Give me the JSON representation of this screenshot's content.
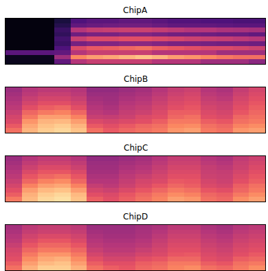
{
  "chart_data": [
    {
      "type": "heatmap",
      "title": "ChipA",
      "zlim": [
        0,
        1
      ],
      "tick_labels": false,
      "cells": [
        [
          0.05,
          0.05,
          0.05,
          0.3,
          0.5,
          0.55,
          0.55,
          0.55,
          0.55,
          0.5,
          0.5,
          0.5,
          0.45,
          0.45,
          0.45,
          0.4
        ],
        [
          0.05,
          0.05,
          0.05,
          0.45,
          0.75,
          0.8,
          0.82,
          0.85,
          0.88,
          0.85,
          0.8,
          0.78,
          0.75,
          0.72,
          0.7,
          0.7
        ],
        [
          0.28,
          0.28,
          0.28,
          0.3,
          0.5,
          0.55,
          0.55,
          0.55,
          0.55,
          0.5,
          0.5,
          0.5,
          0.5,
          0.45,
          0.45,
          0.45
        ],
        [
          0.02,
          0.02,
          0.02,
          0.25,
          0.6,
          0.65,
          0.66,
          0.68,
          0.7,
          0.66,
          0.64,
          0.62,
          0.6,
          0.6,
          0.58,
          0.56
        ],
        [
          0.02,
          0.02,
          0.02,
          0.2,
          0.35,
          0.38,
          0.38,
          0.4,
          0.4,
          0.38,
          0.36,
          0.36,
          0.35,
          0.34,
          0.34,
          0.33
        ],
        [
          0.02,
          0.02,
          0.02,
          0.22,
          0.55,
          0.6,
          0.6,
          0.62,
          0.62,
          0.6,
          0.58,
          0.56,
          0.55,
          0.54,
          0.52,
          0.5
        ],
        [
          0.02,
          0.02,
          0.02,
          0.18,
          0.33,
          0.36,
          0.36,
          0.38,
          0.38,
          0.36,
          0.34,
          0.34,
          0.33,
          0.32,
          0.32,
          0.3
        ],
        [
          0.02,
          0.02,
          0.02,
          0.2,
          0.5,
          0.54,
          0.55,
          0.56,
          0.56,
          0.54,
          0.52,
          0.5,
          0.5,
          0.48,
          0.47,
          0.46
        ],
        [
          0.02,
          0.02,
          0.02,
          0.15,
          0.3,
          0.32,
          0.33,
          0.34,
          0.34,
          0.32,
          0.3,
          0.3,
          0.3,
          0.29,
          0.28,
          0.28
        ],
        [
          0.02,
          0.02,
          0.02,
          0.12,
          0.25,
          0.28,
          0.28,
          0.3,
          0.3,
          0.28,
          0.26,
          0.26,
          0.25,
          0.25,
          0.24,
          0.24
        ]
      ]
    },
    {
      "type": "heatmap",
      "title": "ChipB",
      "zlim": [
        0,
        1
      ],
      "tick_labels": false,
      "cells": [
        [
          0.7,
          0.85,
          0.9,
          0.92,
          0.88,
          0.7,
          0.65,
          0.68,
          0.7,
          0.72,
          0.78,
          0.8,
          0.72,
          0.7,
          0.78,
          0.8
        ],
        [
          0.65,
          0.82,
          0.88,
          0.9,
          0.85,
          0.65,
          0.62,
          0.65,
          0.68,
          0.7,
          0.75,
          0.76,
          0.7,
          0.68,
          0.74,
          0.76
        ],
        [
          0.6,
          0.78,
          0.85,
          0.86,
          0.8,
          0.6,
          0.58,
          0.6,
          0.62,
          0.66,
          0.72,
          0.72,
          0.66,
          0.64,
          0.7,
          0.72
        ],
        [
          0.58,
          0.72,
          0.8,
          0.8,
          0.74,
          0.55,
          0.54,
          0.56,
          0.6,
          0.62,
          0.68,
          0.7,
          0.62,
          0.6,
          0.68,
          0.7
        ],
        [
          0.55,
          0.68,
          0.72,
          0.74,
          0.68,
          0.52,
          0.5,
          0.54,
          0.56,
          0.6,
          0.66,
          0.66,
          0.6,
          0.58,
          0.64,
          0.68
        ],
        [
          0.52,
          0.62,
          0.66,
          0.68,
          0.62,
          0.5,
          0.48,
          0.52,
          0.54,
          0.58,
          0.62,
          0.64,
          0.58,
          0.56,
          0.62,
          0.66
        ],
        [
          0.5,
          0.58,
          0.62,
          0.62,
          0.58,
          0.48,
          0.46,
          0.5,
          0.52,
          0.56,
          0.6,
          0.62,
          0.56,
          0.55,
          0.6,
          0.64
        ],
        [
          0.48,
          0.55,
          0.58,
          0.58,
          0.55,
          0.46,
          0.45,
          0.48,
          0.5,
          0.54,
          0.58,
          0.6,
          0.54,
          0.52,
          0.58,
          0.62
        ],
        [
          0.46,
          0.52,
          0.55,
          0.55,
          0.52,
          0.44,
          0.44,
          0.46,
          0.48,
          0.52,
          0.56,
          0.58,
          0.52,
          0.5,
          0.56,
          0.6
        ],
        [
          0.44,
          0.5,
          0.52,
          0.52,
          0.5,
          0.42,
          0.42,
          0.44,
          0.46,
          0.5,
          0.54,
          0.56,
          0.5,
          0.48,
          0.54,
          0.58
        ]
      ]
    },
    {
      "type": "heatmap",
      "title": "ChipC",
      "zlim": [
        0,
        1
      ],
      "tick_labels": false,
      "cells": [
        [
          0.72,
          0.86,
          0.92,
          0.94,
          0.88,
          0.66,
          0.62,
          0.66,
          0.7,
          0.74,
          0.8,
          0.78,
          0.7,
          0.68,
          0.76,
          0.8
        ],
        [
          0.66,
          0.84,
          0.9,
          0.92,
          0.86,
          0.62,
          0.6,
          0.64,
          0.68,
          0.72,
          0.76,
          0.74,
          0.68,
          0.66,
          0.72,
          0.76
        ],
        [
          0.62,
          0.8,
          0.86,
          0.88,
          0.8,
          0.58,
          0.56,
          0.6,
          0.64,
          0.68,
          0.72,
          0.7,
          0.64,
          0.62,
          0.68,
          0.72
        ],
        [
          0.58,
          0.74,
          0.8,
          0.82,
          0.74,
          0.54,
          0.52,
          0.56,
          0.6,
          0.64,
          0.68,
          0.66,
          0.6,
          0.58,
          0.66,
          0.7
        ],
        [
          0.55,
          0.68,
          0.74,
          0.76,
          0.68,
          0.5,
          0.5,
          0.54,
          0.58,
          0.6,
          0.65,
          0.64,
          0.58,
          0.56,
          0.62,
          0.66
        ],
        [
          0.52,
          0.64,
          0.68,
          0.7,
          0.64,
          0.48,
          0.48,
          0.52,
          0.55,
          0.58,
          0.62,
          0.62,
          0.56,
          0.55,
          0.6,
          0.64
        ],
        [
          0.5,
          0.6,
          0.64,
          0.64,
          0.6,
          0.46,
          0.46,
          0.5,
          0.52,
          0.56,
          0.6,
          0.6,
          0.55,
          0.54,
          0.58,
          0.62
        ],
        [
          0.48,
          0.56,
          0.6,
          0.6,
          0.56,
          0.45,
          0.45,
          0.48,
          0.5,
          0.54,
          0.58,
          0.58,
          0.54,
          0.52,
          0.56,
          0.6
        ],
        [
          0.46,
          0.53,
          0.56,
          0.56,
          0.53,
          0.44,
          0.44,
          0.46,
          0.48,
          0.52,
          0.56,
          0.56,
          0.52,
          0.5,
          0.55,
          0.58
        ],
        [
          0.44,
          0.5,
          0.53,
          0.53,
          0.5,
          0.42,
          0.42,
          0.44,
          0.46,
          0.5,
          0.54,
          0.54,
          0.5,
          0.48,
          0.53,
          0.56
        ]
      ]
    },
    {
      "type": "heatmap",
      "title": "ChipD",
      "zlim": [
        0,
        1
      ],
      "tick_labels": false,
      "cells": [
        [
          0.7,
          0.84,
          0.9,
          0.9,
          0.84,
          0.7,
          0.66,
          0.64,
          0.68,
          0.7,
          0.74,
          0.76,
          0.7,
          0.68,
          0.72,
          0.76
        ],
        [
          0.66,
          0.8,
          0.86,
          0.88,
          0.8,
          0.66,
          0.62,
          0.62,
          0.66,
          0.68,
          0.72,
          0.72,
          0.66,
          0.64,
          0.7,
          0.72
        ],
        [
          0.62,
          0.76,
          0.82,
          0.84,
          0.76,
          0.62,
          0.58,
          0.58,
          0.62,
          0.64,
          0.68,
          0.68,
          0.62,
          0.6,
          0.66,
          0.68
        ],
        [
          0.6,
          0.72,
          0.78,
          0.78,
          0.72,
          0.58,
          0.55,
          0.55,
          0.58,
          0.6,
          0.64,
          0.65,
          0.6,
          0.58,
          0.62,
          0.65
        ],
        [
          0.58,
          0.68,
          0.72,
          0.72,
          0.68,
          0.55,
          0.52,
          0.52,
          0.55,
          0.58,
          0.62,
          0.62,
          0.58,
          0.56,
          0.6,
          0.62
        ],
        [
          0.55,
          0.64,
          0.68,
          0.68,
          0.64,
          0.52,
          0.5,
          0.5,
          0.52,
          0.56,
          0.6,
          0.6,
          0.56,
          0.54,
          0.58,
          0.6
        ],
        [
          0.52,
          0.6,
          0.64,
          0.64,
          0.6,
          0.5,
          0.48,
          0.48,
          0.5,
          0.54,
          0.58,
          0.58,
          0.54,
          0.52,
          0.56,
          0.58
        ],
        [
          0.5,
          0.57,
          0.6,
          0.6,
          0.57,
          0.48,
          0.46,
          0.46,
          0.48,
          0.52,
          0.56,
          0.56,
          0.52,
          0.5,
          0.54,
          0.56
        ],
        [
          0.48,
          0.54,
          0.56,
          0.56,
          0.54,
          0.46,
          0.45,
          0.45,
          0.47,
          0.5,
          0.54,
          0.54,
          0.5,
          0.48,
          0.52,
          0.54
        ],
        [
          0.46,
          0.52,
          0.54,
          0.54,
          0.52,
          0.44,
          0.44,
          0.44,
          0.46,
          0.48,
          0.52,
          0.52,
          0.48,
          0.46,
          0.5,
          0.52
        ]
      ]
    }
  ]
}
